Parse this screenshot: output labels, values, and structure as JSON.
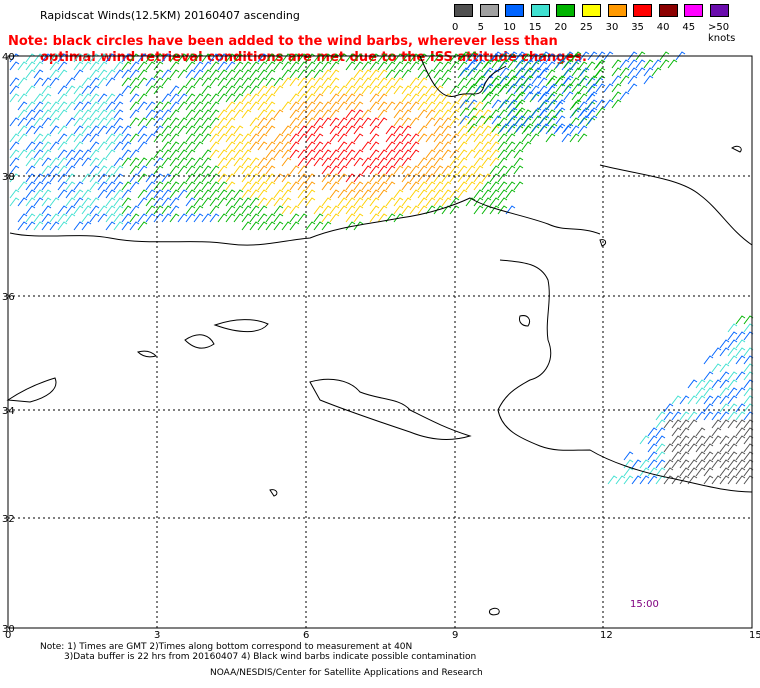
{
  "header": {
    "title": "Rapidscat Winds(12.5KM) 20160407 ascending"
  },
  "note": {
    "line1": "Note: black circles have been added to the wind barbs, wherever less than",
    "line2": "optimal wind retrieval conditions are met due to the ISS attitude changes."
  },
  "legend": {
    "labels": [
      "0",
      "5",
      "10",
      "15",
      "20",
      "25",
      "30",
      "35",
      "40",
      "45",
      ">50 knots"
    ],
    "colors": [
      "#505050",
      "#a0a0a0",
      "#0064ff",
      "#40e0d0",
      "#00b400",
      "#ffff00",
      "#ff9900",
      "#ff0000",
      "#8b0000",
      "#ff00ff",
      "#6a0dad"
    ]
  },
  "map": {
    "x_ticks": [
      "0",
      "3",
      "6",
      "9",
      "12",
      "15"
    ],
    "y_ticks": [
      "40",
      "38",
      "36",
      "34",
      "32",
      "30"
    ],
    "time_label": "15:00"
  },
  "footer": {
    "line1": "Note: 1) Times are GMT 2)Times along bottom correspond to measurement at 40N",
    "line2": "3)Data buffer is 22 hrs from 20160407 4) Black wind barbs indicate possible contamination",
    "credit": "NOAA/NESDIS/Center for Satellite Applications and Research"
  }
}
